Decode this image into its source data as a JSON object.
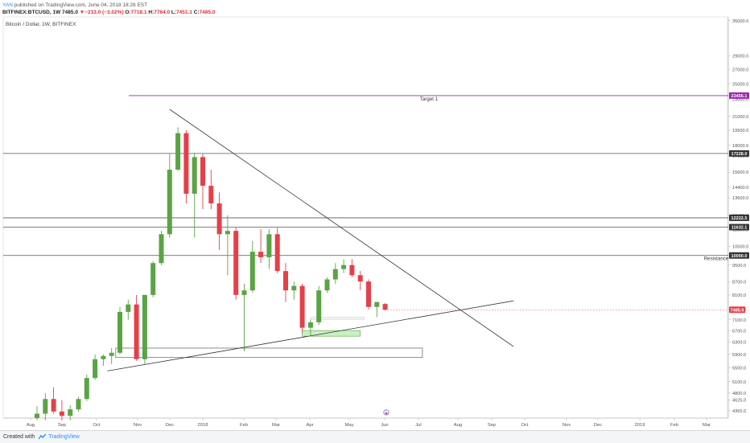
{
  "header": {
    "user": "YAN",
    "published_text": "published on TradingView.com, June 04, 2018 18:28 EST",
    "symbol": "BITFINEX:BTCUSD, 1W",
    "last": "7485.0",
    "change": "▼−233.0 (−3.02%)",
    "o_label": "O:",
    "o": "7718.1",
    "h_label": "H:",
    "h": "7764.0",
    "l_label": "L:",
    "l": "7451.1",
    "c_label": "C:",
    "c": "7485.0"
  },
  "chart_title": "Bitcoin / Dollar, 1W, BITFINEX",
  "footer": {
    "created": "Created with",
    "brand": "TradingView"
  },
  "colors": {
    "up": "#5aa444",
    "down": "#e5404a",
    "line": "#333333",
    "target": "#9c27b0",
    "grid_level": "#555555",
    "zone_green": "#c8f0c4"
  },
  "chart_data": {
    "type": "candlestick",
    "y_scale": "log",
    "ylim": [
      4200,
      35700
    ],
    "y_ticks": [
      "35000.0",
      "29000.0",
      "27000.0",
      "25000.0",
      "23000.0",
      "21000.0",
      "19500.0",
      "18000.0",
      "17000.0",
      "15600.0",
      "14400.0",
      "13600.0",
      "12400.0",
      "11500.0",
      "10500.0",
      "9500.0",
      "8700.0",
      "8100.0",
      "7500.0",
      "7100.0",
      "6700.0",
      "6300.0",
      "5900.0",
      "5500.0",
      "5100.0",
      "4800.0",
      "4625.0",
      "4365.0"
    ],
    "x_labels": [
      "Aug",
      "Sep",
      "Oct",
      "Nov",
      "Dec",
      "2018",
      "Feb",
      "Mar",
      "Apr",
      "May",
      "Jun",
      "Jul",
      "Aug",
      "Sep",
      "Oct",
      "Nov",
      "Dec",
      "2019",
      "Feb",
      "Mar"
    ],
    "candles": [
      {
        "o": 4200,
        "h": 4480,
        "l": 4150,
        "c": 4300
      },
      {
        "o": 4300,
        "h": 4800,
        "l": 4150,
        "c": 4650
      },
      {
        "o": 4650,
        "h": 4950,
        "l": 4300,
        "c": 4350
      },
      {
        "o": 4350,
        "h": 4620,
        "l": 4150,
        "c": 4250
      },
      {
        "o": 4250,
        "h": 4500,
        "l": 4150,
        "c": 4400
      },
      {
        "o": 4400,
        "h": 4700,
        "l": 4350,
        "c": 4650
      },
      {
        "o": 4650,
        "h": 5300,
        "l": 4600,
        "c": 5200
      },
      {
        "o": 5200,
        "h": 5900,
        "l": 5150,
        "c": 5750
      },
      {
        "o": 5750,
        "h": 5900,
        "l": 5550,
        "c": 5850
      },
      {
        "o": 5850,
        "h": 6100,
        "l": 5600,
        "c": 5950
      },
      {
        "o": 5950,
        "h": 7600,
        "l": 5900,
        "c": 7400
      },
      {
        "o": 7400,
        "h": 7900,
        "l": 7100,
        "c": 7700
      },
      {
        "o": 7700,
        "h": 8100,
        "l": 5700,
        "c": 5750
      },
      {
        "o": 5750,
        "h": 8100,
        "l": 5600,
        "c": 8100
      },
      {
        "o": 8100,
        "h": 9700,
        "l": 8000,
        "c": 9600
      },
      {
        "o": 9600,
        "h": 11400,
        "l": 9500,
        "c": 11200
      },
      {
        "o": 11200,
        "h": 17200,
        "l": 11000,
        "c": 15800
      },
      {
        "o": 15800,
        "h": 19800,
        "l": 15700,
        "c": 19200
      },
      {
        "o": 19200,
        "h": 19500,
        "l": 13200,
        "c": 13900
      },
      {
        "o": 13900,
        "h": 17300,
        "l": 11000,
        "c": 16900
      },
      {
        "o": 16900,
        "h": 17200,
        "l": 12800,
        "c": 14500
      },
      {
        "o": 14500,
        "h": 15800,
        "l": 12800,
        "c": 13200
      },
      {
        "o": 13200,
        "h": 14000,
        "l": 10300,
        "c": 11200
      },
      {
        "o": 11200,
        "h": 12400,
        "l": 9000,
        "c": 11400
      },
      {
        "o": 11400,
        "h": 11600,
        "l": 7900,
        "c": 8100
      },
      {
        "o": 8100,
        "h": 8600,
        "l": 6000,
        "c": 8300
      },
      {
        "o": 8300,
        "h": 10800,
        "l": 8200,
        "c": 10200
      },
      {
        "o": 10200,
        "h": 11500,
        "l": 9600,
        "c": 9900
      },
      {
        "o": 9900,
        "h": 11500,
        "l": 9300,
        "c": 11200
      },
      {
        "o": 11200,
        "h": 11600,
        "l": 9100,
        "c": 9200
      },
      {
        "o": 9200,
        "h": 9600,
        "l": 7800,
        "c": 8300
      },
      {
        "o": 8300,
        "h": 8700,
        "l": 7900,
        "c": 8500
      },
      {
        "o": 8500,
        "h": 8600,
        "l": 6600,
        "c": 6800
      },
      {
        "o": 6800,
        "h": 7100,
        "l": 6500,
        "c": 7000
      },
      {
        "o": 7000,
        "h": 8500,
        "l": 6900,
        "c": 8300
      },
      {
        "o": 8300,
        "h": 8900,
        "l": 8200,
        "c": 8800
      },
      {
        "o": 8800,
        "h": 9600,
        "l": 8600,
        "c": 9300
      },
      {
        "o": 9300,
        "h": 9800,
        "l": 9100,
        "c": 9500
      },
      {
        "o": 9500,
        "h": 9800,
        "l": 8900,
        "c": 9000
      },
      {
        "o": 9000,
        "h": 9200,
        "l": 8300,
        "c": 8700
      },
      {
        "o": 8700,
        "h": 8800,
        "l": 7500,
        "c": 7600
      },
      {
        "o": 7600,
        "h": 7800,
        "l": 7200,
        "c": 7800
      },
      {
        "o": 7718.1,
        "h": 7764,
        "l": 7451.1,
        "c": 7485
      }
    ],
    "levels": [
      {
        "value": 23456.1,
        "label": "23456.1",
        "kind": "target",
        "text": "Target 1"
      },
      {
        "value": 17228.0,
        "label": "17228.0",
        "kind": "level"
      },
      {
        "value": 12222.5,
        "label": "12222.5",
        "kind": "level"
      },
      {
        "value": 11632.1,
        "label": "11632.1",
        "kind": "level"
      },
      {
        "value": 10000.0,
        "label": "10000.0",
        "kind": "level",
        "text": "Resistance"
      }
    ],
    "last_price_label": "7485.0",
    "trendlines": [
      {
        "from": {
          "bar": 16.0,
          "value": 21800
        },
        "to": {
          "bar": 57.5,
          "value": 6150
        },
        "desc": "descending"
      },
      {
        "from": {
          "bar": 8.5,
          "value": 5400
        },
        "to": {
          "bar": 57.5,
          "value": 7850
        },
        "desc": "ascending"
      }
    ],
    "zones": [
      {
        "bar_from": 9.5,
        "bar_to": 46.5,
        "low": 5800,
        "high": 6100,
        "fill": "none"
      },
      {
        "bar_from": 32.0,
        "bar_to": 39.0,
        "low": 6500,
        "high": 6700,
        "fill": "green"
      },
      {
        "bar_from": 33.0,
        "bar_to": 39.5,
        "low": 7100,
        "high": 7200,
        "fill": "light"
      }
    ]
  }
}
